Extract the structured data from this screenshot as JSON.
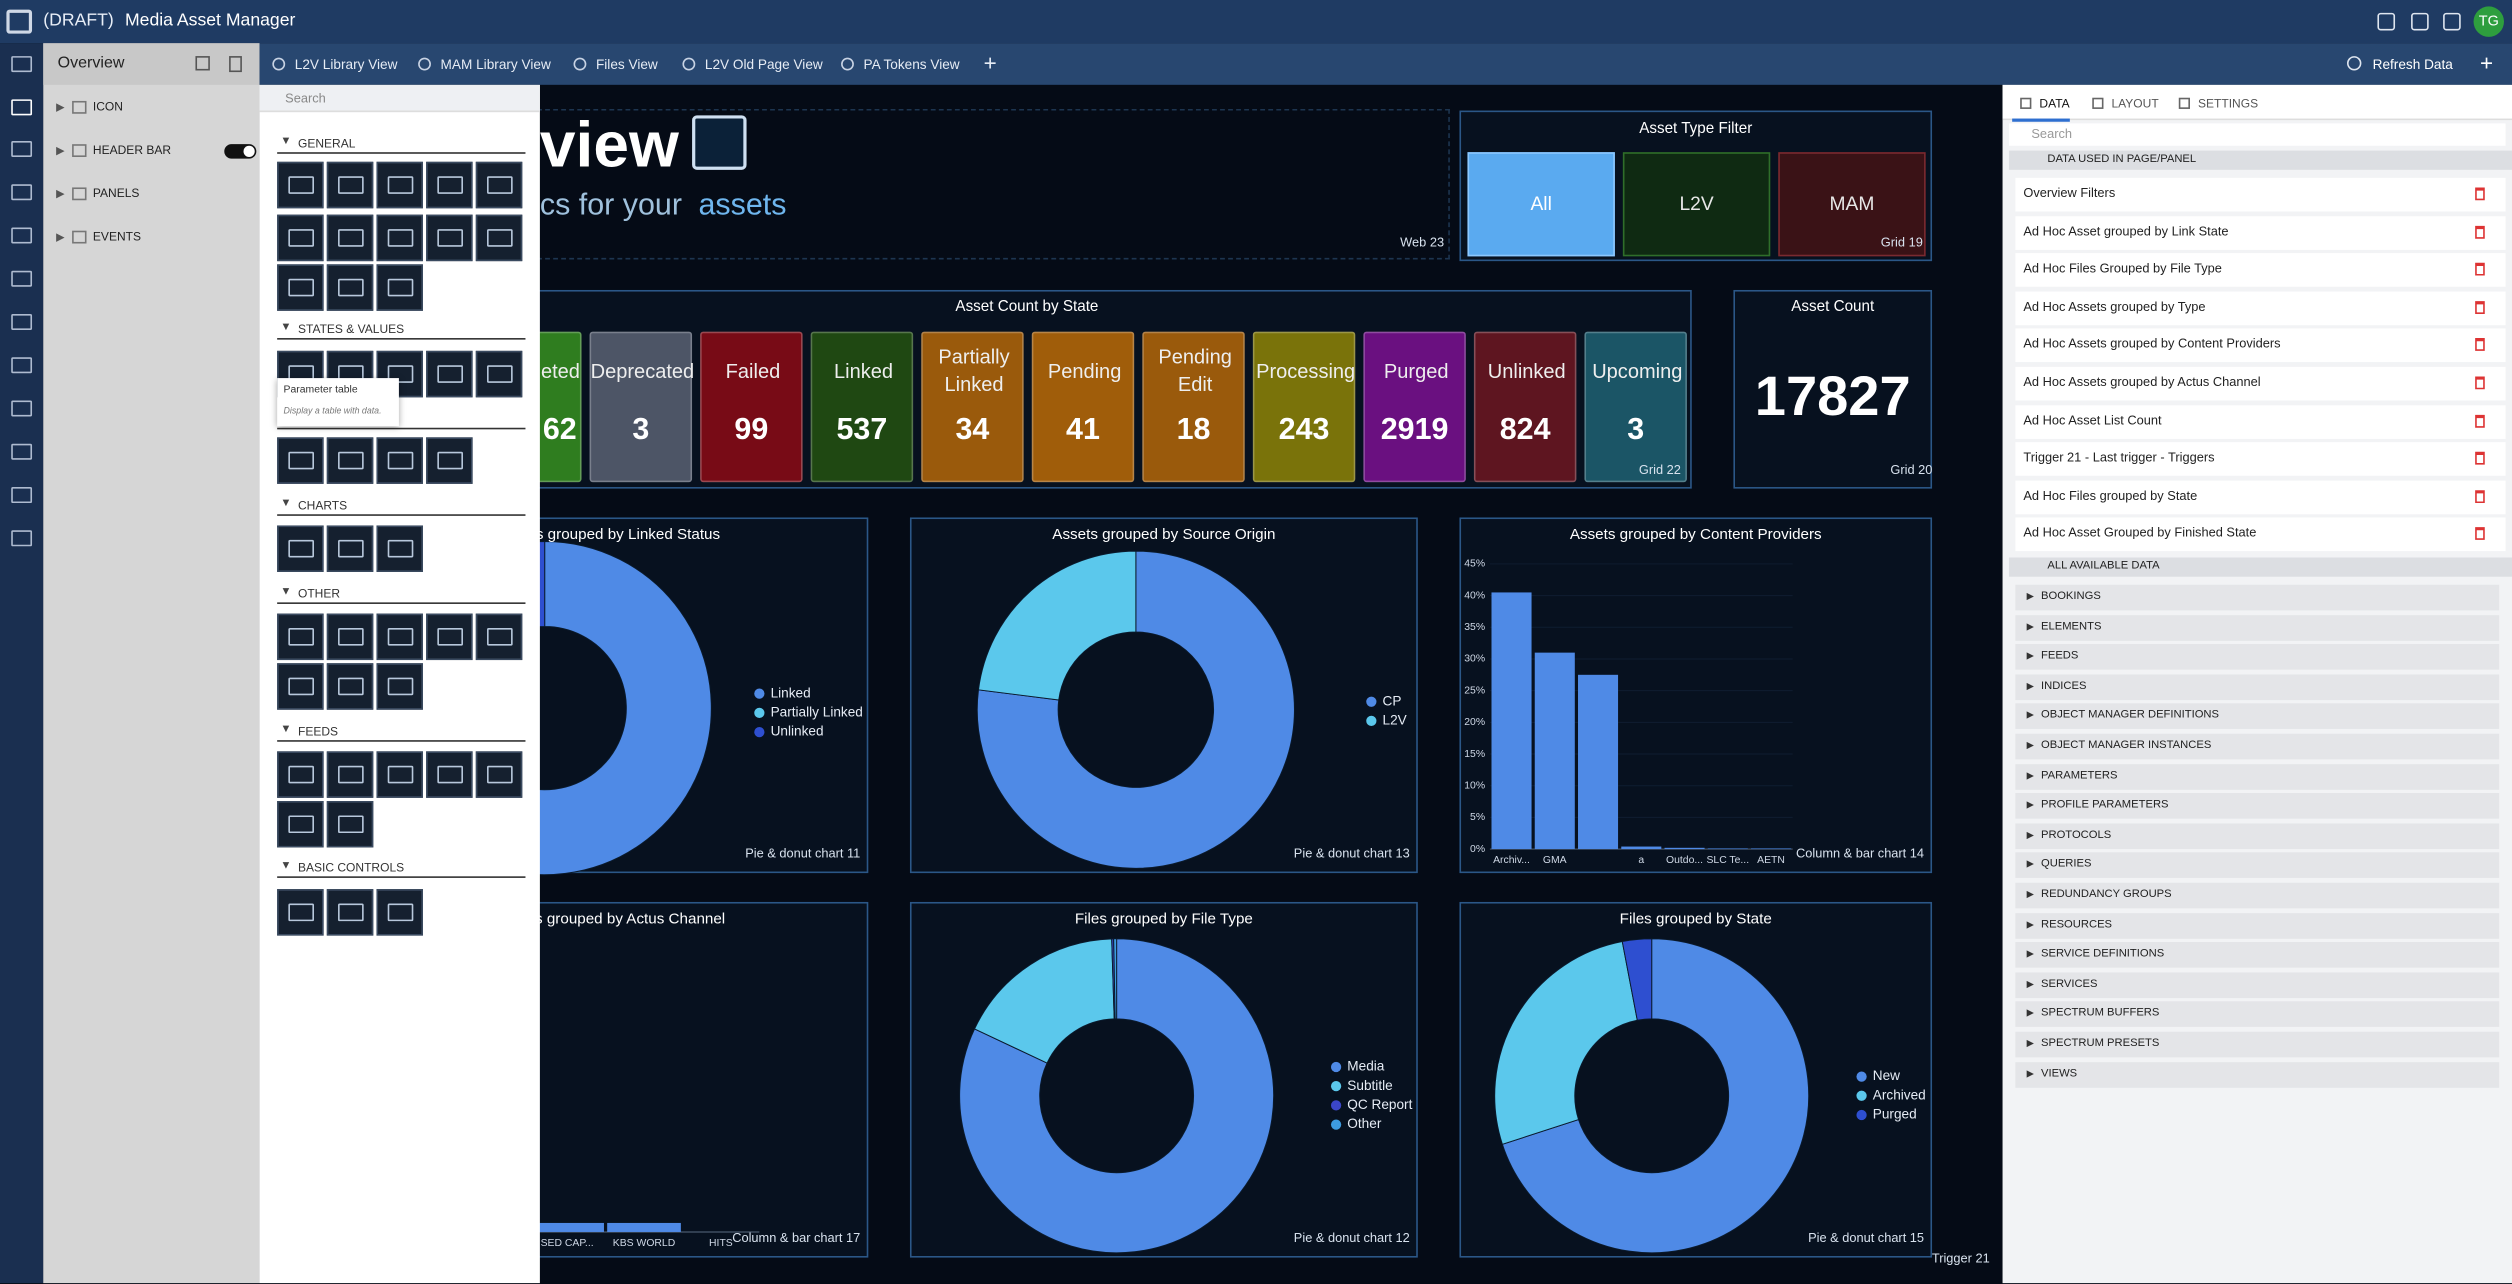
{
  "app": {
    "draft": "(DRAFT)",
    "title": "Media Asset Manager",
    "user": "TG"
  },
  "page_tab": "Overview",
  "views": [
    "L2V Library View",
    "MAM Library View",
    "Files View",
    "L2V Old Page View",
    "PA Tokens View"
  ],
  "refresh": "Refresh Data",
  "tree": [
    "ICON",
    "HEADER BAR",
    "PANELS",
    "EVENTS"
  ],
  "palette": {
    "search": "Search",
    "tooltip": {
      "title": "Parameter table",
      "text": "Display a table with data."
    },
    "sections": [
      "GENERAL",
      "STATES & VALUES",
      "CHARTS",
      "OTHER",
      "FEEDS",
      "BASIC CONTROLS"
    ]
  },
  "dashboard": {
    "header": {
      "title": "view",
      "subtitle": "cs for your",
      "accent": "assets",
      "label": "Web 23"
    },
    "filter": {
      "title": "Asset Type Filter",
      "options": [
        "All",
        "L2V",
        "MAM"
      ],
      "label": "Grid 19"
    },
    "states": {
      "title": "Asset Count by State",
      "label": "Grid 22",
      "items": [
        {
          "name": "eted",
          "value": 62,
          "color": "#2f7d1f"
        },
        {
          "name": "Deprecated",
          "value": 3,
          "color": "#4d5566"
        },
        {
          "name": "Failed",
          "value": 99,
          "color": "#780b16"
        },
        {
          "name": "Linked",
          "value": 537,
          "color": "#1f4812"
        },
        {
          "name": "Partially Linked",
          "value": 34,
          "color": "#9a5a0c"
        },
        {
          "name": "Pending",
          "value": 41,
          "color": "#a05d0a"
        },
        {
          "name": "Pending Edit",
          "value": 18,
          "color": "#9a5a0c"
        },
        {
          "name": "Processing",
          "value": 243,
          "color": "#7a730a"
        },
        {
          "name": "Purged",
          "value": 2919,
          "color": "#6a1080"
        },
        {
          "name": "Unlinked",
          "value": 824,
          "color": "#5e1520"
        },
        {
          "name": "Upcoming",
          "value": 3,
          "color": "#1b5566"
        }
      ]
    },
    "count": {
      "title": "Asset Count",
      "value": 17827,
      "label": "Grid 20"
    },
    "charts": [
      {
        "type": "pie",
        "title": "s grouped by Linked Status",
        "label": "Pie & donut chart 11",
        "series": [
          {
            "name": "Linked",
            "color": "#4f8ae6",
            "value": 96
          },
          {
            "name": "Partially Linked",
            "color": "#5bc8ec",
            "value": 0.5
          },
          {
            "name": "Unlinked",
            "color": "#2e4fd0",
            "value": 3.5
          }
        ]
      },
      {
        "type": "pie",
        "title": "Assets grouped by Source Origin",
        "label": "Pie & donut chart 13",
        "series": [
          {
            "name": "CP",
            "color": "#4f8ae6",
            "value": 77
          },
          {
            "name": "L2V",
            "color": "#5bc8ec",
            "value": 23
          }
        ]
      },
      {
        "type": "bar",
        "title": "Assets grouped by Content Providers",
        "label": "Column & bar chart 14",
        "color": "#4f8ae6",
        "categories": [
          "Archiv...",
          "GMA",
          null,
          "a",
          "Outdo...",
          "SLC Te...",
          "AETN"
        ],
        "values": [
          40.5,
          31,
          27.5,
          0.4,
          0.2,
          0.1,
          0.1
        ],
        "ylim": [
          0,
          45
        ],
        "yticks": [
          {
            "value": 0,
            "label": "0%"
          },
          {
            "value": 5,
            "label": "5%"
          },
          {
            "value": 10,
            "label": "10%"
          },
          {
            "value": 15,
            "label": "15%"
          },
          {
            "value": 20,
            "label": "20%"
          },
          {
            "value": 25,
            "label": "25%"
          },
          {
            "value": 30,
            "label": "30%"
          },
          {
            "value": 35,
            "label": "35%"
          },
          {
            "value": 40,
            "label": "40%"
          },
          {
            "value": 45,
            "label": "45%"
          }
        ]
      },
      {
        "type": "bar",
        "title": "ts grouped by Actus Channel",
        "label": "Column & bar chart 17",
        "color": "#4f8ae6",
        "categories": [
          "SED CAP...",
          "KBS WORLD",
          "HITS"
        ],
        "values": [
          1.5,
          1.5,
          0
        ],
        "ylim": [
          0,
          45
        ]
      },
      {
        "type": "pie",
        "title": "Files grouped by File Type",
        "label": "Pie & donut chart 12",
        "series": [
          {
            "name": "Media",
            "color": "#4f8ae6",
            "value": 82
          },
          {
            "name": "Subtitle",
            "color": "#5bc8ec",
            "value": 17.5
          },
          {
            "name": "QC Report",
            "color": "#3b46c8",
            "value": 0.2
          },
          {
            "name": "Other",
            "color": "#3d9be0",
            "value": 0.3
          }
        ]
      },
      {
        "type": "pie",
        "title": "Files grouped by State",
        "label": "Pie & donut chart 15",
        "series": [
          {
            "name": "New",
            "color": "#4f8ae6",
            "value": 70
          },
          {
            "name": "Archived",
            "color": "#5bc8ec",
            "value": 27
          },
          {
            "name": "Purged",
            "color": "#2e4fd0",
            "value": 3
          }
        ]
      }
    ],
    "footer": "Trigger 21"
  },
  "data_panel": {
    "tabs": [
      "DATA",
      "LAYOUT",
      "SETTINGS"
    ],
    "search": "Search",
    "used_title": "DATA USED IN PAGE/PANEL",
    "used": [
      "Overview Filters",
      "Ad Hoc Asset grouped by Link State",
      "Ad Hoc Files Grouped by File Type",
      "Ad Hoc Assets grouped by Type",
      "Ad Hoc Assets grouped by Content Providers",
      "Ad Hoc Assets grouped by Actus Channel",
      "Ad Hoc Asset List Count",
      "Trigger 21 - Last trigger - Triggers",
      "Ad Hoc Files grouped by State",
      "Ad Hoc Asset Grouped by Finished State"
    ],
    "all_title": "ALL AVAILABLE DATA",
    "all": [
      "BOOKINGS",
      "ELEMENTS",
      "FEEDS",
      "INDICES",
      "OBJECT MANAGER DEFINITIONS",
      "OBJECT MANAGER INSTANCES",
      "PARAMETERS",
      "PROFILE PARAMETERS",
      "PROTOCOLS",
      "QUERIES",
      "REDUNDANCY GROUPS",
      "RESOURCES",
      "SERVICE DEFINITIONS",
      "SERVICES",
      "SPECTRUM BUFFERS",
      "SPECTRUM PRESETS",
      "VIEWS"
    ]
  }
}
